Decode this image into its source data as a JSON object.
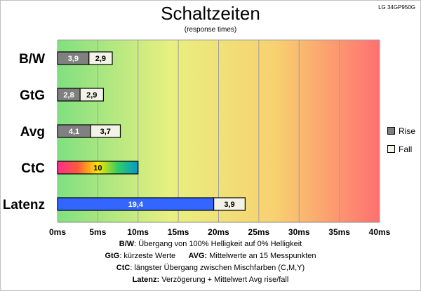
{
  "header": {
    "model": "LG 34GP950G",
    "title": "Schaltzeiten",
    "subtitle": "(response times)"
  },
  "chart_data": {
    "type": "bar",
    "orientation": "horizontal",
    "stacked": true,
    "categories": [
      "B/W",
      "GtG",
      "Avg",
      "CtC",
      "Latenz"
    ],
    "series": [
      {
        "name": "Rise",
        "color": "#808080",
        "values": [
          3.9,
          2.8,
          4.1,
          null,
          19.4
        ]
      },
      {
        "name": "Fall",
        "color": "#f2f2e6",
        "values": [
          2.9,
          2.9,
          3.7,
          null,
          3.9
        ]
      }
    ],
    "ctc_value": 10,
    "latency_bar_color": "#3366ff",
    "value_labels": {
      "rise": [
        "3,9",
        "2,8",
        "4,1",
        "",
        "19,4"
      ],
      "fall": [
        "2,9",
        "2,9",
        "3,7",
        "",
        "3,9"
      ],
      "ctc": "10"
    },
    "x_ticks": [
      "0ms",
      "5ms",
      "10ms",
      "15ms",
      "20ms",
      "25ms",
      "30ms",
      "35ms",
      "40ms"
    ],
    "xlim": [
      0,
      40
    ],
    "grid": true,
    "legend_position": "right",
    "background_gradient": [
      "#80e080",
      "#e8f080",
      "#f8d070",
      "#ff7070"
    ]
  },
  "legend": {
    "rise": "Rise",
    "fall": "Fall"
  },
  "notes": {
    "bw_key": "B/W",
    "bw_text": ":  Übergang von 100% Helligkeit auf 0% Helligkeit",
    "gtg_key": "GtG",
    "gtg_text": ": kürzeste  Werte",
    "avg_key": "AVG:",
    "avg_text": " Mittelwerte  an 15 Messpunkten",
    "ctc_key": "CtC",
    "ctc_text": ": längster Übergang  zwischen Mischfarben (C,M,Y)",
    "lat_key": "Latenz:",
    "lat_text": " Verzögerung  + Mittelwert Avg rise/fall"
  }
}
